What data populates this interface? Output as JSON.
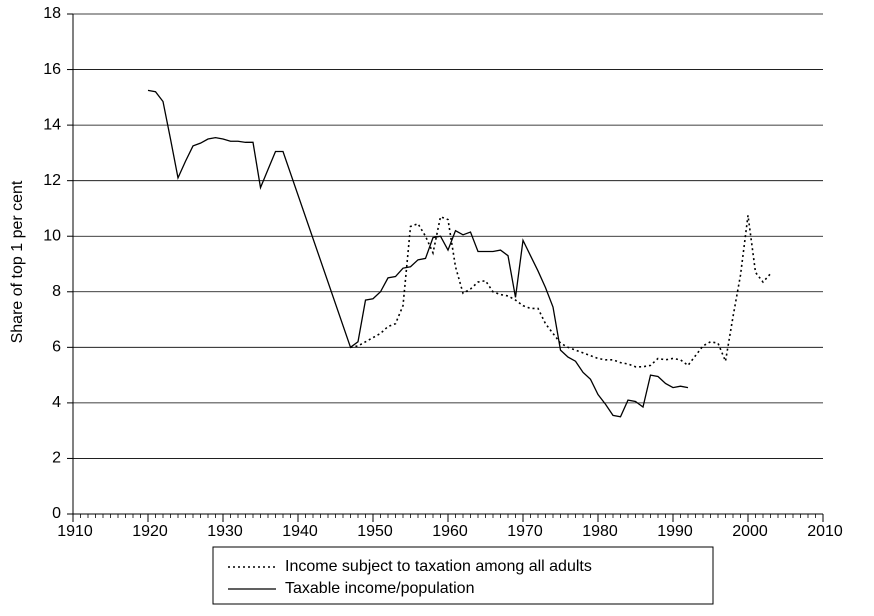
{
  "chart_data": {
    "type": "line",
    "y_label": "Share of top 1 per cent",
    "xlim": [
      1910,
      2010
    ],
    "xticks": [
      1910,
      1920,
      1930,
      1940,
      1950,
      1960,
      1970,
      1980,
      1990,
      2000,
      2010
    ],
    "ylim": [
      0,
      18
    ],
    "yticks": [
      0,
      2,
      4,
      6,
      8,
      10,
      12,
      14,
      16,
      18
    ],
    "grid": true,
    "legend": "bottom",
    "series": [
      {
        "name": "Income subject to taxation among all adults",
        "color": "#000000",
        "dash": "dotted",
        "x": [
          1947,
          1948,
          1949,
          1950,
          1951,
          1952,
          1953,
          1954,
          1955,
          1956,
          1957,
          1958,
          1959,
          1960,
          1961,
          1962,
          1963,
          1964,
          1965,
          1966,
          1967,
          1968,
          1969,
          1970,
          1971,
          1972,
          1973,
          1974,
          1975,
          1976,
          1977,
          1978,
          1979,
          1980,
          1981,
          1982,
          1983,
          1984,
          1985,
          1986,
          1987,
          1988,
          1989,
          1990,
          1991,
          1992,
          1993,
          1994,
          1995,
          1996,
          1997,
          1998,
          1999,
          2000,
          2001,
          2002,
          2003
        ],
        "values": [
          6.0,
          6.05,
          6.2,
          6.35,
          6.5,
          6.75,
          6.85,
          7.5,
          10.35,
          10.45,
          10.0,
          9.4,
          10.7,
          10.6,
          8.9,
          7.95,
          8.1,
          8.35,
          8.4,
          8.0,
          7.9,
          7.85,
          7.7,
          7.5,
          7.4,
          7.4,
          6.85,
          6.5,
          6.15,
          6.0,
          5.9,
          5.8,
          5.7,
          5.6,
          5.55,
          5.55,
          5.45,
          5.4,
          5.3,
          5.3,
          5.35,
          5.6,
          5.55,
          5.6,
          5.55,
          5.35,
          5.7,
          6.05,
          6.2,
          6.15,
          5.5,
          7.1,
          8.6,
          10.75,
          8.7,
          8.35,
          8.65
        ]
      },
      {
        "name": "Taxable income/population",
        "color": "#000000",
        "dash": "solid",
        "x": [
          1920,
          1921,
          1922,
          1923,
          1924,
          1925,
          1926,
          1927,
          1928,
          1929,
          1930,
          1931,
          1932,
          1933,
          1934,
          1935,
          1936,
          1937,
          1938,
          1947,
          1948,
          1949,
          1950,
          1951,
          1952,
          1953,
          1954,
          1955,
          1956,
          1957,
          1958,
          1959,
          1960,
          1961,
          1962,
          1963,
          1964,
          1965,
          1966,
          1967,
          1968,
          1969,
          1970,
          1971,
          1972,
          1973,
          1974,
          1975,
          1976,
          1977,
          1978,
          1979,
          1980,
          1981,
          1982,
          1983,
          1984,
          1985,
          1986,
          1987,
          1988,
          1989,
          1990,
          1991,
          1992
        ],
        "values": [
          15.25,
          15.2,
          14.85,
          13.5,
          12.1,
          12.7,
          13.25,
          13.35,
          13.5,
          13.55,
          13.5,
          13.42,
          13.42,
          13.38,
          13.38,
          11.75,
          12.4,
          13.05,
          13.05,
          6.0,
          6.2,
          7.7,
          7.75,
          8.0,
          8.5,
          8.55,
          8.85,
          8.9,
          9.15,
          9.2,
          9.95,
          10.0,
          9.5,
          10.2,
          10.05,
          10.15,
          9.45,
          9.45,
          9.45,
          9.5,
          9.3,
          7.8,
          9.85,
          9.3,
          8.75,
          8.15,
          7.45,
          5.9,
          5.65,
          5.5,
          5.1,
          4.85,
          4.3,
          3.95,
          3.55,
          3.5,
          4.1,
          4.05,
          3.85,
          5.0,
          4.95,
          4.7,
          4.55,
          4.6,
          4.55
        ]
      }
    ]
  }
}
